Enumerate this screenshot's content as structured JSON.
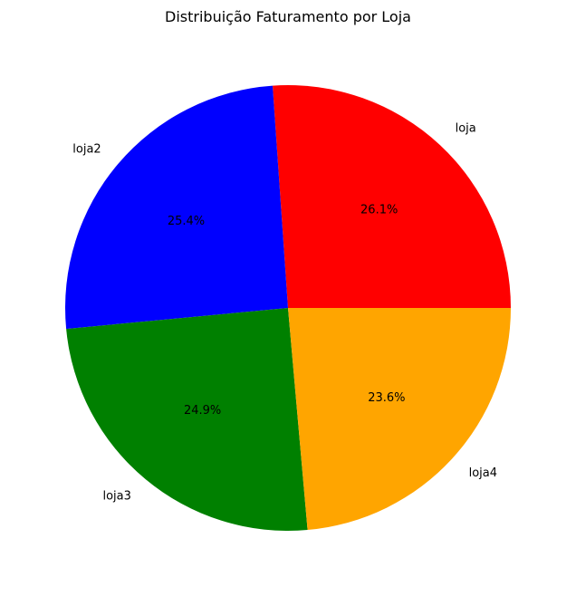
{
  "chart_data": {
    "type": "pie",
    "title": "Distribuição Faturamento por Loja",
    "labels": [
      "loja",
      "loja2",
      "loja3",
      "loja4"
    ],
    "values": [
      26.1,
      25.4,
      24.9,
      23.6
    ],
    "value_labels": [
      "26.1%",
      "25.4%",
      "24.9%",
      "23.6%"
    ],
    "colors": [
      "#ff0000",
      "#0000ff",
      "#008000",
      "#ffa500"
    ],
    "start_angle_deg": 0,
    "direction": "counterclockwise",
    "legend": "none"
  }
}
